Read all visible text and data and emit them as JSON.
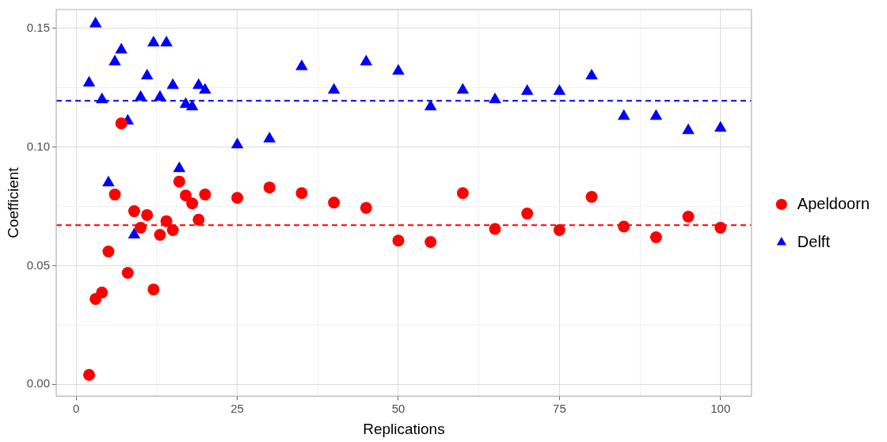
{
  "chart_data": {
    "type": "scatter",
    "xlabel": "Replications",
    "ylabel": "Coefficient",
    "xlim": [
      -3.1,
      104.8
    ],
    "ylim": [
      -0.005,
      0.158
    ],
    "xticks": [
      0,
      {
        "value": 12.5,
        "label": null
      },
      25,
      {
        "value": 37.5,
        "label": null
      },
      50,
      {
        "value": 62.5,
        "label": null
      },
      75,
      {
        "value": 87.5,
        "label": null
      },
      100
    ],
    "yticks": [
      {
        "value": 0,
        "label": "0.00"
      },
      {
        "value": 0.025,
        "label": null
      },
      {
        "value": 0.05,
        "label": "0.05"
      },
      {
        "value": 0.075,
        "label": null
      },
      {
        "value": 0.1,
        "label": "0.10"
      },
      {
        "value": 0.125,
        "label": null
      },
      {
        "value": 0.15,
        "label": "0.15"
      }
    ],
    "grid": true,
    "legend": "right",
    "series": [
      {
        "name": "Apeldoorn",
        "color": "#ff0000",
        "marker": "circle",
        "x": [
          2,
          3,
          4,
          5,
          6,
          7,
          8,
          9,
          10,
          11,
          12,
          13,
          14,
          15,
          16,
          17,
          18,
          19,
          20,
          25,
          30,
          35,
          40,
          45,
          50,
          55,
          60,
          65,
          70,
          75,
          80,
          85,
          90,
          95,
          100
        ],
        "values": [
          0.004,
          0.036,
          0.0387,
          0.056,
          0.08,
          0.11,
          0.047,
          0.073,
          0.066,
          0.0714,
          0.04,
          0.063,
          0.0688,
          0.065,
          0.0855,
          0.0796,
          0.0763,
          0.0694,
          0.08,
          0.0786,
          0.083,
          0.0806,
          0.0766,
          0.0744,
          0.0606,
          0.06,
          0.0806,
          0.0655,
          0.072,
          0.065,
          0.079,
          0.0665,
          0.062,
          0.0707,
          0.066
        ]
      },
      {
        "name": "Delft",
        "color": "#0000ff",
        "marker": "triangle",
        "x": [
          2,
          3,
          4,
          5,
          6,
          7,
          8,
          9,
          10,
          11,
          12,
          13,
          14,
          15,
          16,
          17,
          18,
          19,
          20,
          25,
          30,
          35,
          40,
          45,
          50,
          55,
          60,
          65,
          70,
          75,
          80,
          85,
          90,
          95,
          100
        ],
        "values": [
          0.127,
          0.152,
          0.12,
          0.085,
          0.136,
          0.141,
          0.111,
          0.063,
          0.121,
          0.13,
          0.144,
          0.121,
          0.144,
          0.126,
          0.091,
          0.118,
          0.117,
          0.126,
          0.124,
          0.101,
          0.1035,
          0.134,
          0.124,
          0.136,
          0.132,
          0.117,
          0.124,
          0.12,
          0.1235,
          0.1235,
          0.13,
          0.113,
          0.113,
          0.107,
          0.108
        ]
      }
    ],
    "ref_lines": [
      {
        "axis": "y",
        "value": 0.0671,
        "color": "#ff0000",
        "line_style": "dashed"
      },
      {
        "axis": "y",
        "value": 0.1195,
        "color": "#0000ff",
        "line_style": "dashed"
      }
    ]
  }
}
